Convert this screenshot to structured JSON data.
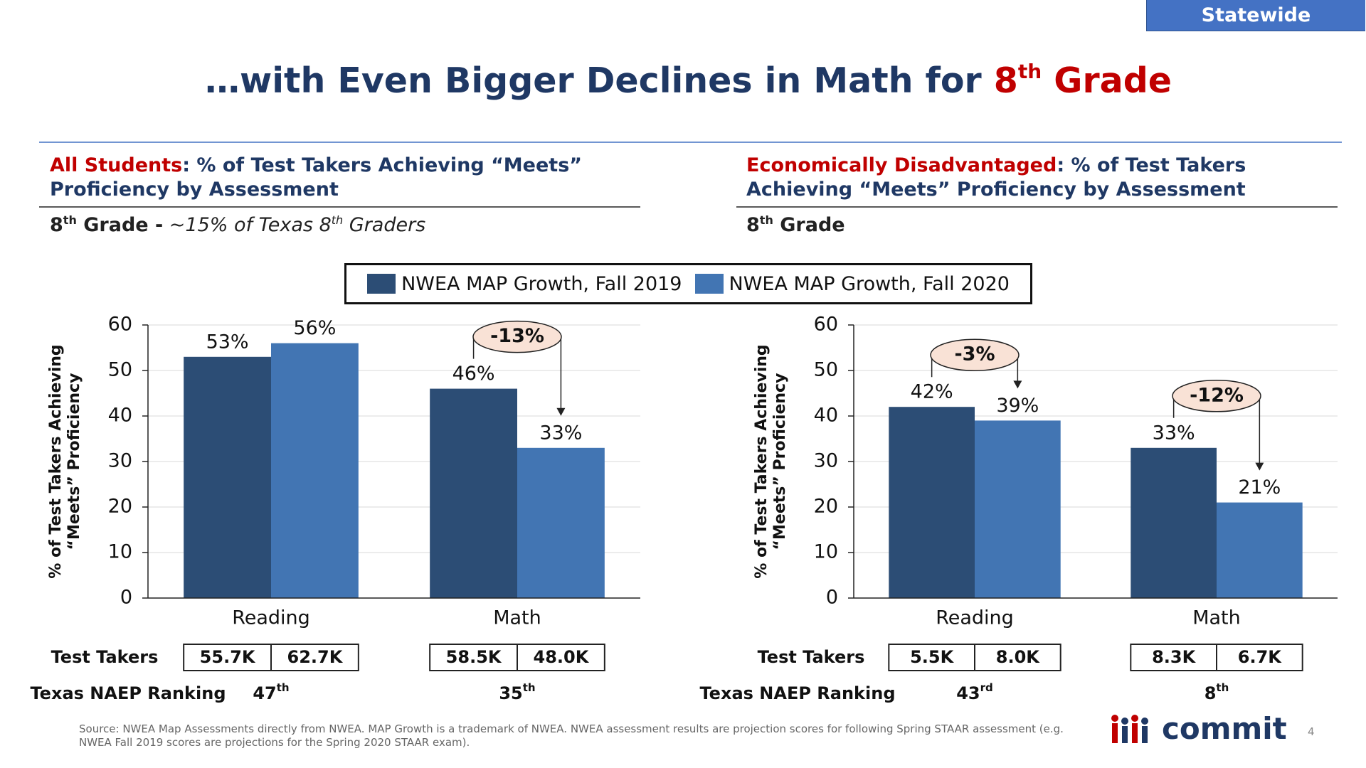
{
  "badge": "Statewide",
  "title": {
    "main": "…with Even Bigger Declines in Math for",
    "highlight_number": "8",
    "highlight_suffix": "th",
    "highlight_word": "Grade"
  },
  "chart_data": [
    {
      "type": "bar",
      "heading_highlight": "All Students",
      "heading": ": % of Test Takers Achieving “Meets” Proficiency by Assessment",
      "subheading": {
        "number": "8",
        "suffix": "th",
        "text": "Grade -",
        "note": "~15% of Texas 8",
        "note_suffix": "th",
        "note_end": "Graders"
      },
      "y_label": "% of Test Takers Achieving “Meets” Proficiency",
      "categories": [
        "Reading",
        "Math"
      ],
      "series": [
        {
          "name": "NWEA MAP Growth, Fall 2019",
          "color": "#2c4d75",
          "values": [
            53,
            46
          ],
          "value_labels": [
            "53%",
            "46%"
          ]
        },
        {
          "name": "NWEA MAP Growth, Fall 2020",
          "color": "#4275b3",
          "values": [
            56,
            33
          ],
          "value_labels": [
            "56%",
            "33%"
          ]
        }
      ],
      "ylim": [
        0,
        60
      ],
      "yticks": [
        0,
        10,
        20,
        30,
        40,
        50,
        60
      ],
      "grid": true,
      "annotations": [
        null,
        "-13%"
      ],
      "test_takers": {
        "label": "Test Takers",
        "values": [
          [
            "55.7K",
            "62.7K"
          ],
          [
            "58.5K",
            "48.0K"
          ]
        ]
      },
      "naep_ranking": {
        "label": "Texas NAEP Ranking",
        "values": [
          {
            "rank": "47",
            "suffix": "th"
          },
          {
            "rank": "35",
            "suffix": "th"
          }
        ]
      }
    },
    {
      "type": "bar",
      "heading_highlight": "Economically Disadvantaged",
      "heading": ": % of Test Takers Achieving “Meets” Proficiency by Assessment",
      "subheading": {
        "number": "8",
        "suffix": "th",
        "text": "Grade"
      },
      "y_label": "% of Test Takers Achieving “Meets” Proficiency",
      "categories": [
        "Reading",
        "Math"
      ],
      "series": [
        {
          "color": "#2c4d75",
          "values": [
            42,
            33
          ],
          "value_labels": [
            "42%",
            "33%"
          ]
        },
        {
          "color": "#4275b3",
          "values": [
            39,
            21
          ],
          "value_labels": [
            "39%",
            "21%"
          ]
        }
      ],
      "ylim": [
        0,
        60
      ],
      "yticks": [
        0,
        10,
        20,
        30,
        40,
        50,
        60
      ],
      "grid": true,
      "annotations": [
        "-3%",
        "-12%"
      ],
      "test_takers": {
        "label": "Test Takers",
        "values": [
          [
            "5.5K",
            "8.0K"
          ],
          [
            "8.3K",
            "6.7K"
          ]
        ]
      },
      "naep_ranking": {
        "label": "Texas NAEP Ranking",
        "values": [
          {
            "rank": "43",
            "suffix": "rd"
          },
          {
            "rank": "8",
            "suffix": "th"
          }
        ]
      }
    }
  ],
  "source": "Source: NWEA Map Assessments directly from NWEA. MAP Growth is a trademark of NWEA. NWEA assessment results are projection scores for following Spring STAAR assessment (e.g. NWEA Fall 2019 scores are projections for the Spring 2020 STAAR exam).",
  "logo": "commit",
  "page_number": "4"
}
